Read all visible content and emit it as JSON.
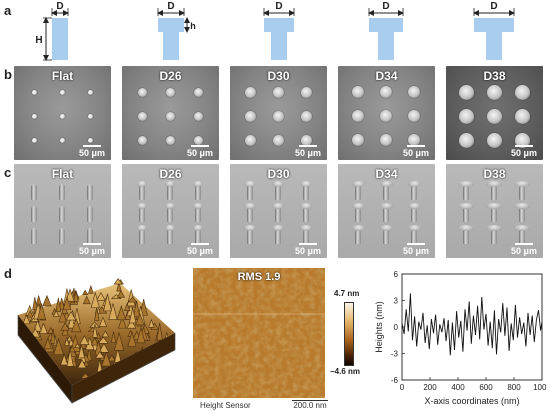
{
  "panel_labels": {
    "a": "a",
    "b": "b",
    "c": "c",
    "d": "d"
  },
  "schematic": {
    "label_D": "D",
    "label_H": "H",
    "label_h": "h",
    "color": "#a9cdef"
  },
  "sem_titles": [
    "Flat",
    "D26",
    "D30",
    "D34",
    "D38"
  ],
  "scale_bar": "50 μm",
  "afm": {
    "rms_label": "RMS 1.9",
    "cbar_max": "4.7 nm",
    "cbar_min": "−4.6 nm",
    "sensor_label": "Height Sensor",
    "scale_label": "200.0 nm"
  },
  "chart_data": {
    "type": "line",
    "xlabel": "X-axis coordinates (nm)",
    "ylabel": "Heights (nm)",
    "xlim": [
      0,
      1000
    ],
    "ylim": [
      -6,
      6
    ],
    "xticks": [
      "0",
      "200",
      "400",
      "600",
      "800",
      "1000"
    ],
    "yticks": [
      "6",
      "3",
      "0",
      "-3",
      "-6"
    ],
    "x": [
      0,
      15,
      30,
      45,
      60,
      75,
      90,
      105,
      120,
      135,
      150,
      165,
      180,
      195,
      210,
      225,
      240,
      255,
      270,
      285,
      300,
      315,
      330,
      345,
      360,
      375,
      390,
      405,
      420,
      435,
      450,
      465,
      480,
      495,
      510,
      525,
      540,
      555,
      570,
      585,
      600,
      615,
      630,
      645,
      660,
      675,
      690,
      705,
      720,
      735,
      750,
      765,
      780,
      795,
      810,
      825,
      840,
      855,
      870,
      885,
      900,
      915,
      930,
      945,
      960,
      975,
      990,
      1000
    ],
    "y": [
      0.4,
      -0.8,
      2.0,
      -0.5,
      3.8,
      -1.5,
      1.2,
      -2.2,
      0.6,
      -0.3,
      1.6,
      -1.8,
      0.2,
      -2.5,
      0.9,
      -0.7,
      1.4,
      -2.0,
      0.3,
      -0.6,
      1.0,
      -1.6,
      0.8,
      -3.2,
      0.5,
      -2.6,
      1.8,
      -1.2,
      0.7,
      -2.8,
      2.0,
      -0.4,
      2.9,
      -1.9,
      1.3,
      -0.9,
      2.4,
      -1.4,
      3.4,
      -0.3,
      1.5,
      -2.1,
      0.6,
      -2.4,
      1.9,
      -3.1,
      0.9,
      -0.6,
      2.7,
      -1.0,
      2.2,
      -2.7,
      0.4,
      -1.5,
      2.5,
      -1.2,
      1.1,
      -0.8,
      0.5,
      -2.2,
      1.6,
      -0.9,
      1.3,
      -1.7,
      0.8,
      1.9,
      -0.4,
      0.6
    ]
  }
}
